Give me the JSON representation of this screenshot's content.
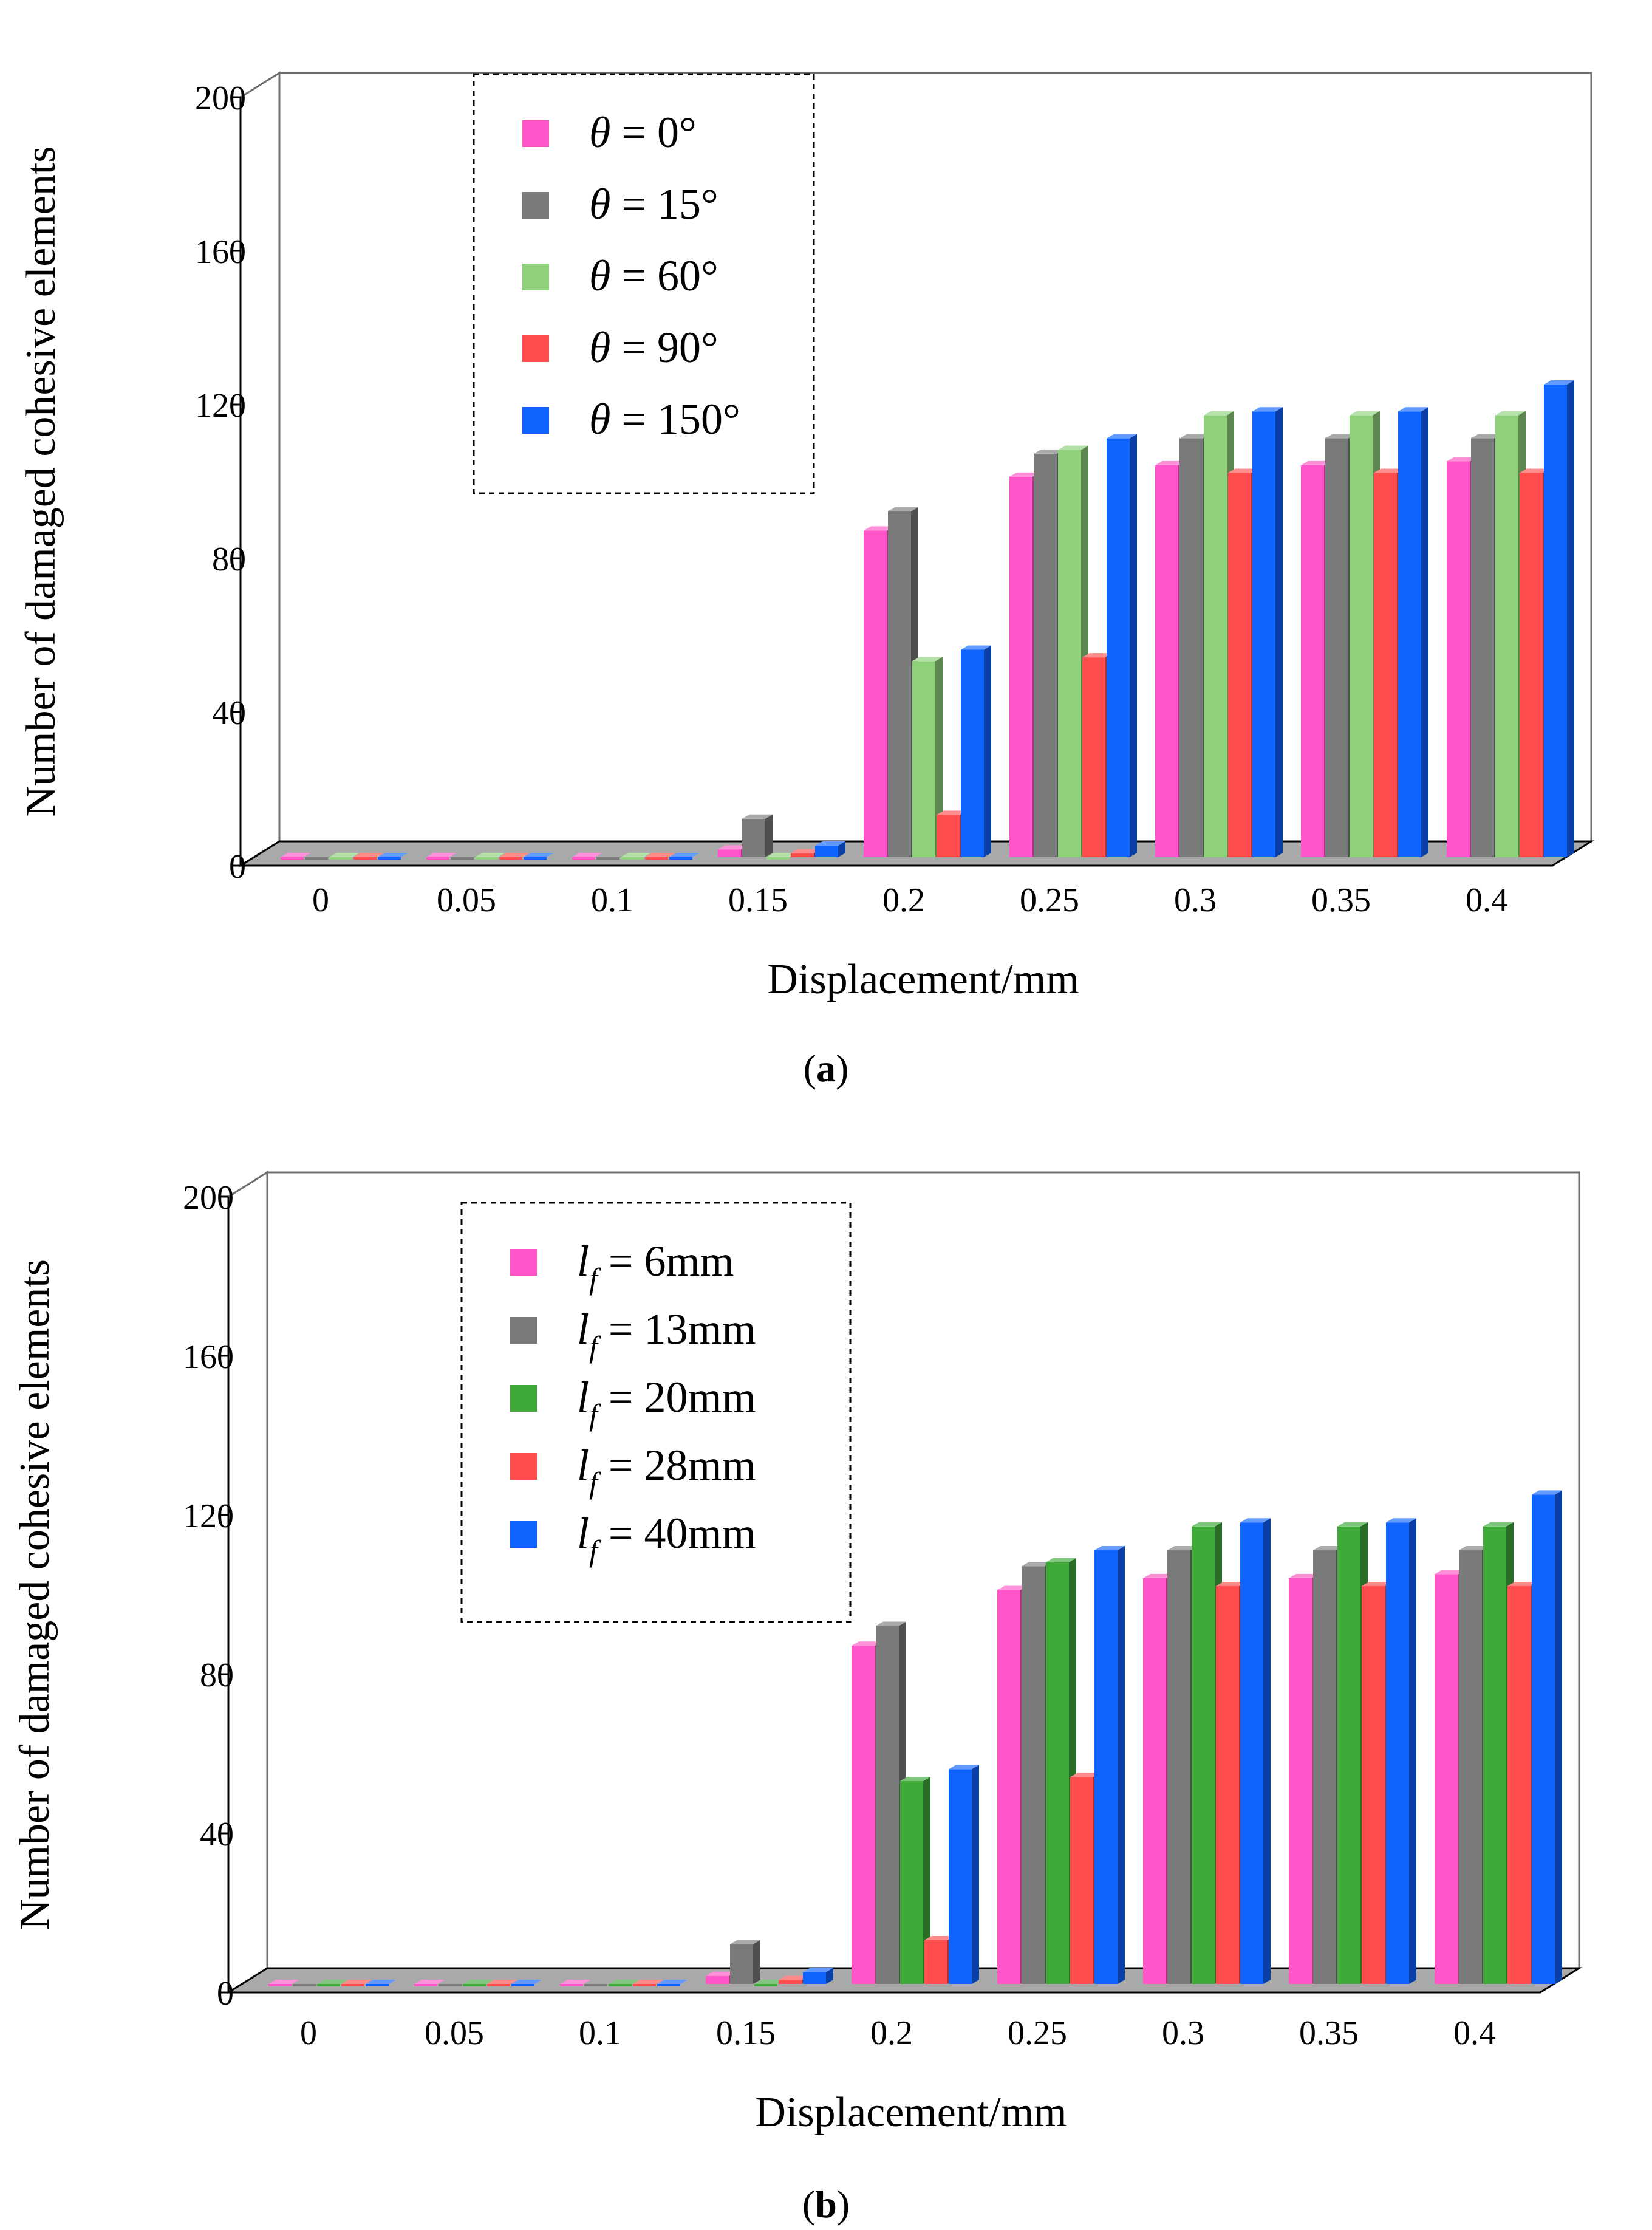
{
  "colors": {
    "series": [
      "#ff55c8",
      "#7a7a7a",
      "#8fd07a",
      "#ff4d4d",
      "#0f63ff"
    ],
    "series_b": [
      "#ff55c8",
      "#7a7a7a",
      "#3fa93a",
      "#ff4d4d",
      "#0f63ff"
    ],
    "floor": "#a9a9a9",
    "frame": "#6f6f6f"
  },
  "chart_data": [
    {
      "type": "bar",
      "panel_label": "a",
      "categories": [
        "0",
        "0.05",
        "0.1",
        "0.15",
        "0.2",
        "0.25",
        "0.3",
        "0.35",
        "0.4"
      ],
      "series": [
        {
          "name": "θ = 0°",
          "symbol": "θ",
          "rest": " = 0°",
          "values": [
            0,
            0,
            0,
            2,
            85,
            99,
            102,
            102,
            103
          ]
        },
        {
          "name": "θ = 15°",
          "symbol": "θ",
          "rest": " = 15°",
          "values": [
            0,
            0,
            0,
            10,
            90,
            105,
            109,
            109,
            109
          ]
        },
        {
          "name": "θ = 60°",
          "symbol": "θ",
          "rest": " = 60°",
          "values": [
            0,
            0,
            0,
            0,
            51,
            106,
            115,
            115,
            115
          ]
        },
        {
          "name": "θ = 90°",
          "symbol": "θ",
          "rest": " = 90°",
          "values": [
            0,
            0,
            0,
            1,
            11,
            52,
            100,
            100,
            100
          ]
        },
        {
          "name": "θ = 150°",
          "symbol": "θ",
          "rest": " = 150°",
          "values": [
            0,
            0,
            0,
            3,
            54,
            109,
            116,
            116,
            123
          ]
        }
      ],
      "ylabel": "Number of damaged cohesive elements",
      "xlabel": "Displacement/mm",
      "ylim": [
        0,
        200
      ],
      "yticks": [
        0,
        40,
        80,
        120,
        160,
        200
      ],
      "legend_position": "top-left",
      "grid": false
    },
    {
      "type": "bar",
      "panel_label": "b",
      "categories": [
        "0",
        "0.05",
        "0.1",
        "0.15",
        "0.2",
        "0.25",
        "0.3",
        "0.35",
        "0.4"
      ],
      "series": [
        {
          "name": "lf = 6mm",
          "symbol": "l",
          "sub": "f",
          "rest": " = 6mm",
          "values": [
            0,
            0,
            0,
            2,
            85,
            99,
            102,
            102,
            103
          ]
        },
        {
          "name": "lf = 13mm",
          "symbol": "l",
          "sub": "f",
          "rest": " = 13mm",
          "values": [
            0,
            0,
            0,
            10,
            90,
            105,
            109,
            109,
            109
          ]
        },
        {
          "name": "lf = 20mm",
          "symbol": "l",
          "sub": "f",
          "rest": " = 20mm",
          "values": [
            0,
            0,
            0,
            0,
            51,
            106,
            115,
            115,
            115
          ]
        },
        {
          "name": "lf = 28mm",
          "symbol": "l",
          "sub": "f",
          "rest": " = 28mm",
          "values": [
            0,
            0,
            0,
            1,
            11,
            52,
            100,
            100,
            100
          ]
        },
        {
          "name": "lf = 40mm",
          "symbol": "l",
          "sub": "f",
          "rest": " = 40mm",
          "values": [
            0,
            0,
            0,
            3,
            54,
            109,
            116,
            116,
            123
          ]
        }
      ],
      "ylabel": "Number of damaged cohesive elements",
      "xlabel": "Displacement/mm",
      "ylim": [
        0,
        200
      ],
      "yticks": [
        0,
        40,
        80,
        120,
        160,
        200
      ],
      "legend_position": "top-left",
      "grid": false
    }
  ]
}
